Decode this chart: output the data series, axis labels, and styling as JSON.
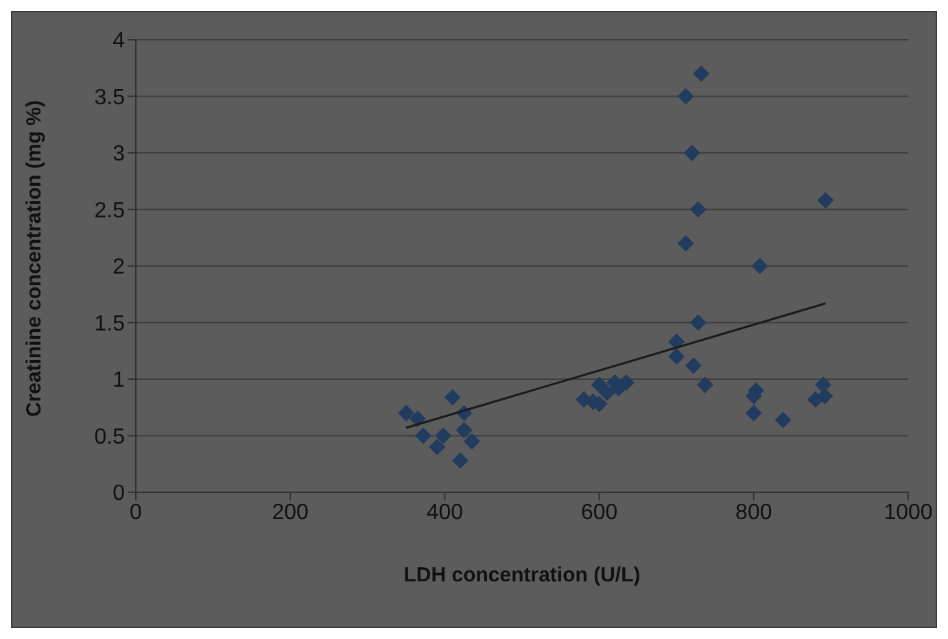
{
  "chart_data": {
    "type": "scatter",
    "xlabel": "LDH concentration (U/L)",
    "ylabel": "Creatinine concentration (mg %)",
    "xlim": [
      0,
      1000
    ],
    "xticks": [
      0,
      200,
      400,
      600,
      800,
      1000
    ],
    "ylim": [
      0,
      4
    ],
    "yticks": [
      0,
      0.5,
      1,
      1.5,
      2,
      2.5,
      3,
      3.5,
      4
    ],
    "grid": "y",
    "legend": false,
    "marker": "diamond",
    "series": [
      {
        "color": "#213c5e",
        "x": [
          350,
          365,
          372,
          390,
          398,
          410,
          420,
          425,
          425,
          435,
          580,
          592,
          600,
          600,
          610,
          620,
          625,
          635,
          700,
          700,
          712,
          712,
          720,
          722,
          728,
          728,
          732,
          737,
          800,
          803,
          800,
          808,
          838,
          880,
          890,
          892,
          893
        ],
        "values": [
          0.7,
          0.65,
          0.5,
          0.4,
          0.5,
          0.84,
          0.28,
          0.7,
          0.55,
          0.45,
          0.82,
          0.8,
          0.78,
          0.95,
          0.88,
          0.97,
          0.92,
          0.97,
          1.33,
          1.2,
          3.5,
          2.2,
          3.0,
          1.12,
          2.5,
          1.5,
          3.7,
          0.95,
          0.85,
          0.9,
          0.7,
          2.0,
          0.64,
          0.82,
          0.95,
          0.85,
          2.58
        ]
      },
      {
        "type": "line",
        "color": "#1a1a1a",
        "marker": "none",
        "x": [
          350,
          893
        ],
        "values": [
          0.57,
          1.67
        ]
      }
    ]
  }
}
